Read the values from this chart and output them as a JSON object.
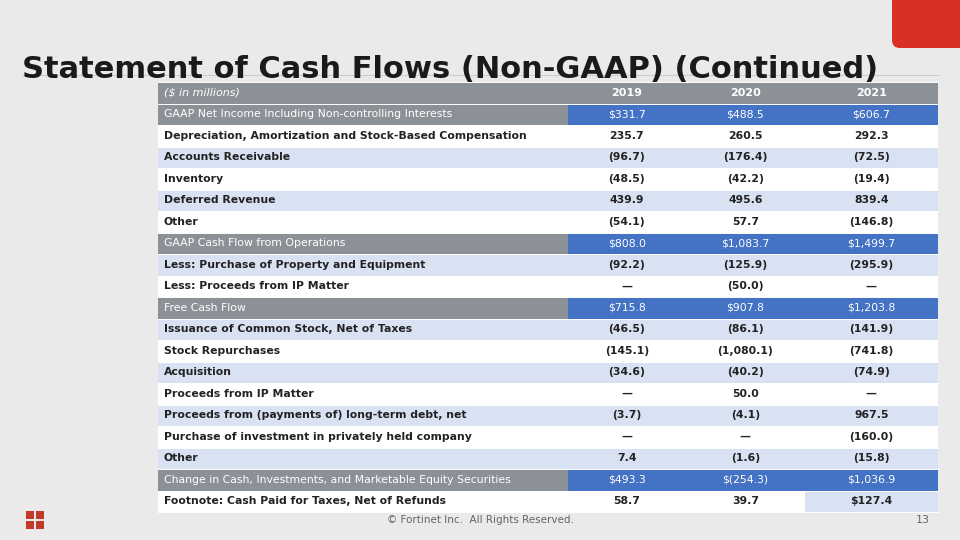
{
  "title": "Statement of Cash Flows (Non-GAAP) (Continued)",
  "page_number": "13",
  "footer": "© Fortinet Inc.  All Rights Reserved.",
  "bg_color": "#eaeaea",
  "red_corner_color": "#d93025",
  "table": {
    "col_headers": [
      "($ in millions)",
      "2019",
      "2020",
      "2021"
    ],
    "header_bg": "#8c9198",
    "header_text_color": "#ffffff",
    "highlight_bg": "#4472c4",
    "highlight_text_color": "#ffffff",
    "subtotal_bg": "#8c9198",
    "subtotal_text_color": "#ffffff",
    "alt_row_bg": "#d9e2f3",
    "normal_row_bg": "#ffffff",
    "rows": [
      {
        "label": "GAAP Net Income Including Non-controlling Interests",
        "v2019": "$331.7",
        "v2020": "$488.5",
        "v2021": "$606.7",
        "style": "highlight"
      },
      {
        "label": "Depreciation, Amortization and Stock-Based Compensation",
        "v2019": "235.7",
        "v2020": "260.5",
        "v2021": "292.3",
        "style": "normal"
      },
      {
        "label": "Accounts Receivable",
        "v2019": "(96.7)",
        "v2020": "(176.4)",
        "v2021": "(72.5)",
        "style": "alt"
      },
      {
        "label": "Inventory",
        "v2019": "(48.5)",
        "v2020": "(42.2)",
        "v2021": "(19.4)",
        "style": "normal"
      },
      {
        "label": "Deferred Revenue",
        "v2019": "439.9",
        "v2020": "495.6",
        "v2021": "839.4",
        "style": "alt"
      },
      {
        "label": "Other",
        "v2019": "(54.1)",
        "v2020": "57.7",
        "v2021": "(146.8)",
        "style": "normal"
      },
      {
        "label": "GAAP Cash Flow from Operations",
        "v2019": "$808.0",
        "v2020": "$1,083.7",
        "v2021": "$1,499.7",
        "style": "highlight"
      },
      {
        "label": "Less: Purchase of Property and Equipment",
        "v2019": "(92.2)",
        "v2020": "(125.9)",
        "v2021": "(295.9)",
        "style": "alt"
      },
      {
        "label": "Less: Proceeds from IP Matter",
        "v2019": "—",
        "v2020": "(50.0)",
        "v2021": "—",
        "style": "normal"
      },
      {
        "label": "Free Cash Flow",
        "v2019": "$715.8",
        "v2020": "$907.8",
        "v2021": "$1,203.8",
        "style": "highlight"
      },
      {
        "label": "Issuance of Common Stock, Net of Taxes",
        "v2019": "(46.5)",
        "v2020": "(86.1)",
        "v2021": "(141.9)",
        "style": "alt"
      },
      {
        "label": "Stock Repurchases",
        "v2019": "(145.1)",
        "v2020": "(1,080.1)",
        "v2021": "(741.8)",
        "style": "normal"
      },
      {
        "label": "Acquisition",
        "v2019": "(34.6)",
        "v2020": "(40.2)",
        "v2021": "(74.9)",
        "style": "alt"
      },
      {
        "label": "Proceeds from IP Matter",
        "v2019": "—",
        "v2020": "50.0",
        "v2021": "—",
        "style": "normal"
      },
      {
        "label": "Proceeds from (payments of) long-term debt, net",
        "v2019": "(3.7)",
        "v2020": "(4.1)",
        "v2021": "967.5",
        "style": "alt"
      },
      {
        "label": "Purchase of investment in privately held company",
        "v2019": "—",
        "v2020": "—",
        "v2021": "(160.0)",
        "style": "normal"
      },
      {
        "label": "Other",
        "v2019": "7.4",
        "v2020": "(1.6)",
        "v2021": "(15.8)",
        "style": "alt"
      },
      {
        "label": "Change in Cash, Investments, and Marketable Equity Securities",
        "v2019": "$493.3",
        "v2020": "$(254.3)",
        "v2021": "$1,036.9",
        "style": "highlight"
      },
      {
        "label": "Footnote: Cash Paid for Taxes, Net of Refunds",
        "v2019": "58.7",
        "v2020": "39.7",
        "v2021": "$127.4",
        "style": "footnote"
      }
    ]
  }
}
